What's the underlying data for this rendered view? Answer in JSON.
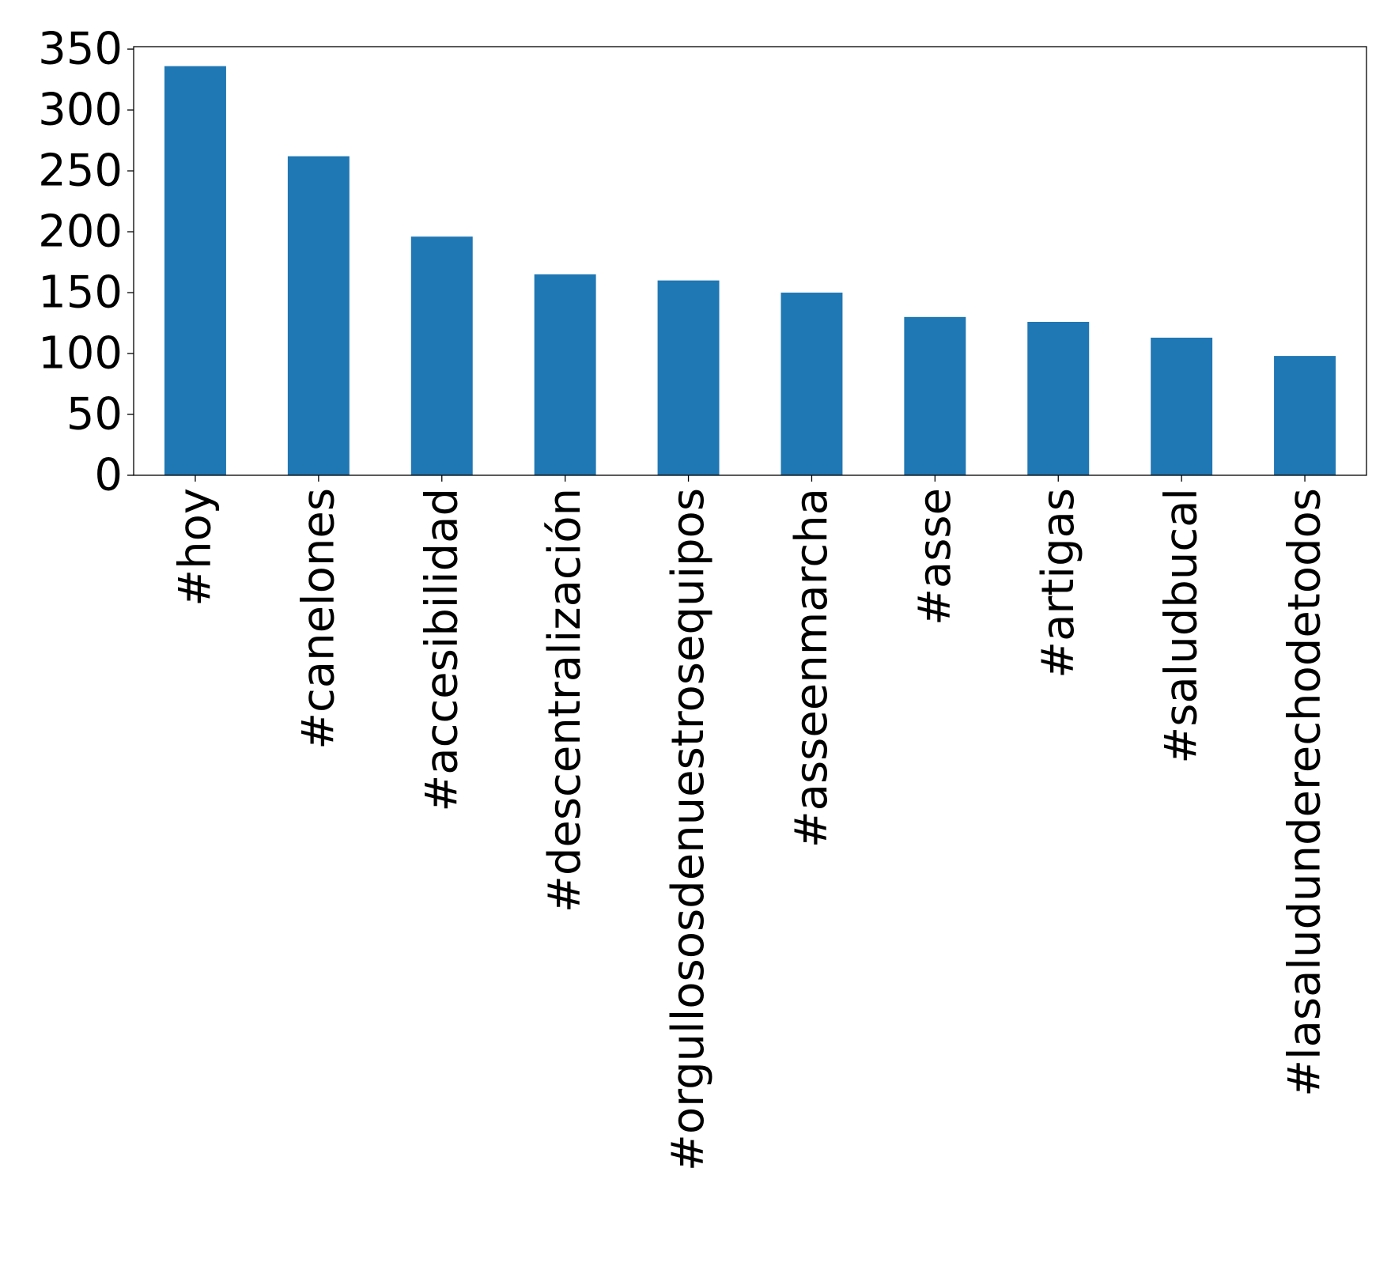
{
  "chart_data": {
    "type": "bar",
    "title": "",
    "xlabel": "",
    "ylabel": "",
    "categories": [
      "#hoy",
      "#canelones",
      "#accesibilidad",
      "#descentralización",
      "#orgullososdenuestrosequipos",
      "#asseenmarcha",
      "#asse",
      "#artigas",
      "#saludbucal",
      "#lasaludunderechodetodos"
    ],
    "values": [
      336,
      262,
      196,
      165,
      160,
      150,
      130,
      126,
      113,
      98
    ],
    "ylim": [
      0,
      352
    ],
    "yticks": [
      0,
      50,
      100,
      150,
      200,
      250,
      300,
      350
    ],
    "bar_color": "#1f77b4",
    "grid": false,
    "legend": "none"
  }
}
